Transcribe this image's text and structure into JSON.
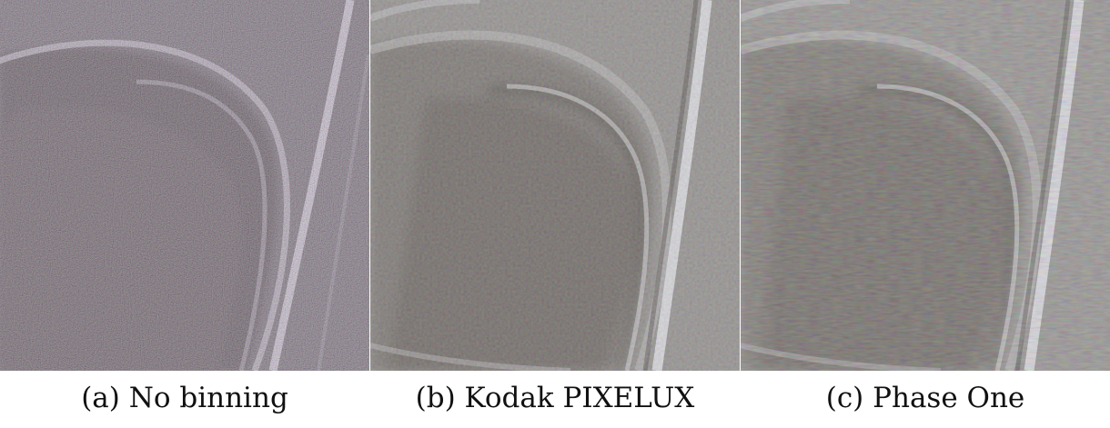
{
  "figure": {
    "panels": [
      {
        "caption": "(a) No binning",
        "image_icon": "no-binning-noisy-image",
        "tone": {
          "base": "#6c6a6a",
          "dark": "#2a2422",
          "highlight": "#e8e8ee",
          "noise": "color-speckle-heavy"
        }
      },
      {
        "caption": "(b) Kodak PIXELUX",
        "image_icon": "kodak-pixelux-binned-image",
        "tone": {
          "base": "#8a8682",
          "dark": "#3a342e",
          "highlight": "#dcdde2",
          "noise": "smooth-grain"
        }
      },
      {
        "caption": "(c) Phase One",
        "image_icon": "phase-one-binned-image",
        "tone": {
          "base": "#8c8884",
          "dark": "#3c3630",
          "highlight": "#dedfe4",
          "noise": "smooth-grain-striped"
        }
      }
    ]
  }
}
